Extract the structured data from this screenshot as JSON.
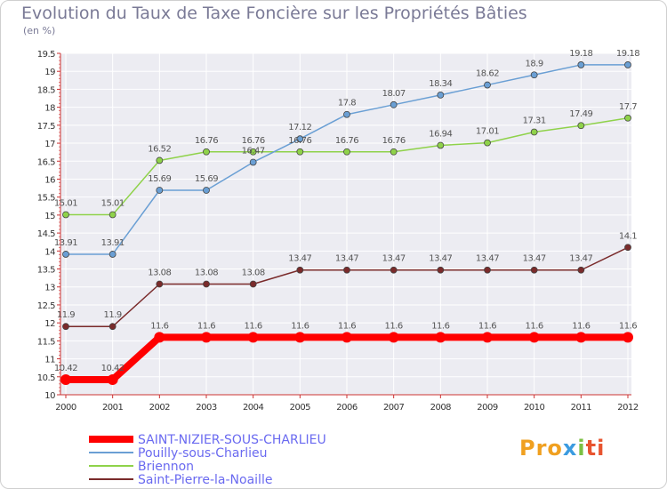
{
  "chart_data": {
    "type": "line",
    "title": "Evolution du Taux de Taxe Foncière sur les Propriétés Bâties",
    "unit_label": "(en %)",
    "x": [
      "2000",
      "2001",
      "2002",
      "2003",
      "2004",
      "2005",
      "2006",
      "2007",
      "2008",
      "2009",
      "2010",
      "2011",
      "2012"
    ],
    "ylim": [
      10,
      19.5
    ],
    "yticks": [
      "10",
      "10.5",
      "11",
      "11.5",
      "12",
      "12.5",
      "13",
      "13.5",
      "14",
      "14.5",
      "15",
      "15.5",
      "16",
      "16.5",
      "17",
      "17.5",
      "18",
      "18.5",
      "19",
      "19.5"
    ],
    "series": [
      {
        "name": "SAINT-NIZIER-SOUS-CHARLIEU",
        "color": "#ff0000",
        "values": [
          10.42,
          10.42,
          11.6,
          11.6,
          11.6,
          11.6,
          11.6,
          11.6,
          11.6,
          11.6,
          11.6,
          11.6,
          11.6
        ],
        "labels": [
          "10.42",
          "10.42",
          "11.6",
          "11.6",
          "11.6",
          "11.6",
          "11.6",
          "11.6",
          "11.6",
          "11.6",
          "11.6",
          "11.6",
          "11.6"
        ]
      },
      {
        "name": "Pouilly-sous-Charlieu",
        "color": "#6a9fd4",
        "values": [
          13.91,
          13.91,
          15.69,
          15.69,
          16.47,
          17.12,
          17.8,
          18.07,
          18.34,
          18.62,
          18.9,
          19.18,
          19.18
        ],
        "labels": [
          "13.91",
          "13.91",
          "15.69",
          "15.69",
          "16.47",
          "17.12",
          "17.8",
          "18.07",
          "18.34",
          "18.62",
          "18.9",
          "19.18",
          "19.18"
        ]
      },
      {
        "name": "Briennon",
        "color": "#8fd24a",
        "values": [
          15.01,
          15.01,
          16.52,
          16.76,
          16.76,
          16.76,
          16.76,
          16.76,
          16.94,
          17.01,
          17.31,
          17.49,
          17.7
        ],
        "labels": [
          "15.01",
          "15.01",
          "16.52",
          "16.76",
          "16.76",
          "16.76",
          "16.76",
          "16.76",
          "16.94",
          "17.01",
          "17.31",
          "17.49",
          "17.7"
        ]
      },
      {
        "name": "Saint-Pierre-la-Noaille",
        "color": "#7a2b2b",
        "values": [
          11.9,
          11.9,
          13.08,
          13.08,
          13.08,
          13.47,
          13.47,
          13.47,
          13.47,
          13.47,
          13.47,
          13.47,
          14.1
        ],
        "labels": [
          "11.9",
          "11.9",
          "13.08",
          "13.08",
          "13.08",
          "13.47",
          "13.47",
          "13.47",
          "13.47",
          "13.47",
          "13.47",
          "13.47",
          "14.1"
        ]
      }
    ]
  },
  "brand": {
    "p1": "Pro",
    "p2": "x",
    "p3": "i",
    "p4": "ti"
  }
}
